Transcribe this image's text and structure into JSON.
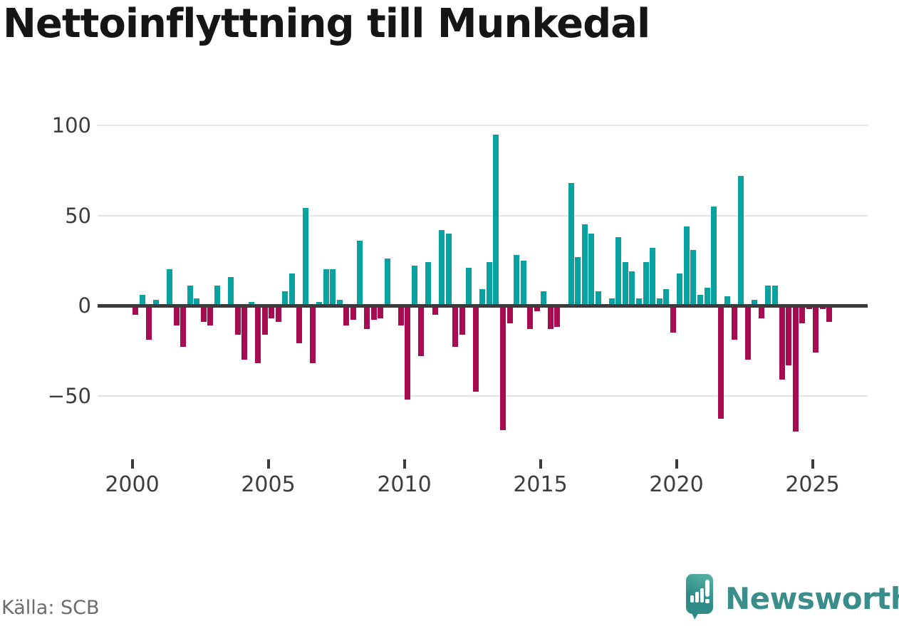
{
  "title": "Nettoinflyttning till Munkedal",
  "source_label": "Källa: SCB",
  "branding": {
    "wordmark": "Newsworthy",
    "color": "#3a8d8b"
  },
  "colors": {
    "positive_bar": "#0aa2a0",
    "negative_bar": "#a60c4f",
    "zero_line": "#3b3b3b",
    "gridline": "#e4e4e4",
    "axis_text": "#3d3d3d",
    "title_text": "#151515",
    "source_text": "#6b6b70"
  },
  "chart_data": {
    "type": "bar",
    "title": "Nettoinflyttning till Munkedal",
    "frequency": "quarterly",
    "x_axis": {
      "tick_labels": [
        "2000",
        "2005",
        "2010",
        "2015",
        "2020",
        "2025"
      ],
      "tick_years": [
        2000,
        2005,
        2010,
        2015,
        2020,
        2025
      ]
    },
    "y_axis": {
      "tick_labels": [
        "100",
        "50",
        "0",
        "−50"
      ],
      "tick_values": [
        100,
        50,
        0,
        -50
      ],
      "ylim": [
        -75,
        108
      ],
      "gridlines": true
    },
    "legend": "none",
    "series": [
      {
        "name": "nettoinflyttning",
        "years": [
          {
            "year": 2000,
            "values": [
              -5,
              6,
              -19,
              3
            ]
          },
          {
            "year": 2001,
            "values": [
              0,
              20,
              -11,
              -23
            ]
          },
          {
            "year": 2002,
            "values": [
              11,
              4,
              -9,
              -11
            ]
          },
          {
            "year": 2003,
            "values": [
              11,
              0,
              16,
              -16
            ]
          },
          {
            "year": 2004,
            "values": [
              -30,
              2,
              -32,
              -16
            ]
          },
          {
            "year": 2005,
            "values": [
              -7,
              -9,
              8,
              18
            ]
          },
          {
            "year": 2006,
            "values": [
              -21,
              54,
              -32,
              2
            ]
          },
          {
            "year": 2007,
            "values": [
              20,
              20,
              3,
              -11
            ]
          },
          {
            "year": 2008,
            "values": [
              -8,
              36,
              -13,
              -8
            ]
          },
          {
            "year": 2009,
            "values": [
              -7,
              26,
              0,
              -11
            ]
          },
          {
            "year": 2010,
            "values": [
              -52,
              22,
              -28,
              24
            ]
          },
          {
            "year": 2011,
            "values": [
              -5,
              42,
              40,
              -23
            ]
          },
          {
            "year": 2012,
            "values": [
              -16,
              21,
              -48,
              9
            ]
          },
          {
            "year": 2013,
            "values": [
              24,
              95,
              -69,
              -10
            ]
          },
          {
            "year": 2014,
            "values": [
              28,
              25,
              -13,
              -3
            ]
          },
          {
            "year": 2015,
            "values": [
              8,
              -13,
              -12,
              0
            ]
          },
          {
            "year": 2016,
            "values": [
              68,
              27,
              45,
              40
            ]
          },
          {
            "year": 2017,
            "values": [
              8,
              0,
              4,
              38
            ]
          },
          {
            "year": 2018,
            "values": [
              24,
              19,
              4,
              24
            ]
          },
          {
            "year": 2019,
            "values": [
              32,
              4,
              9,
              -15
            ]
          },
          {
            "year": 2020,
            "values": [
              18,
              44,
              31,
              6
            ]
          },
          {
            "year": 2021,
            "values": [
              10,
              55,
              -63,
              5
            ]
          },
          {
            "year": 2022,
            "values": [
              -19,
              72,
              -30,
              3
            ]
          },
          {
            "year": 2023,
            "values": [
              -7,
              11,
              11,
              -41
            ]
          },
          {
            "year": 2024,
            "values": [
              -33,
              -70,
              -10,
              -2
            ]
          },
          {
            "year": 2025,
            "values": [
              -26,
              -2,
              -9
            ]
          }
        ]
      }
    ]
  }
}
